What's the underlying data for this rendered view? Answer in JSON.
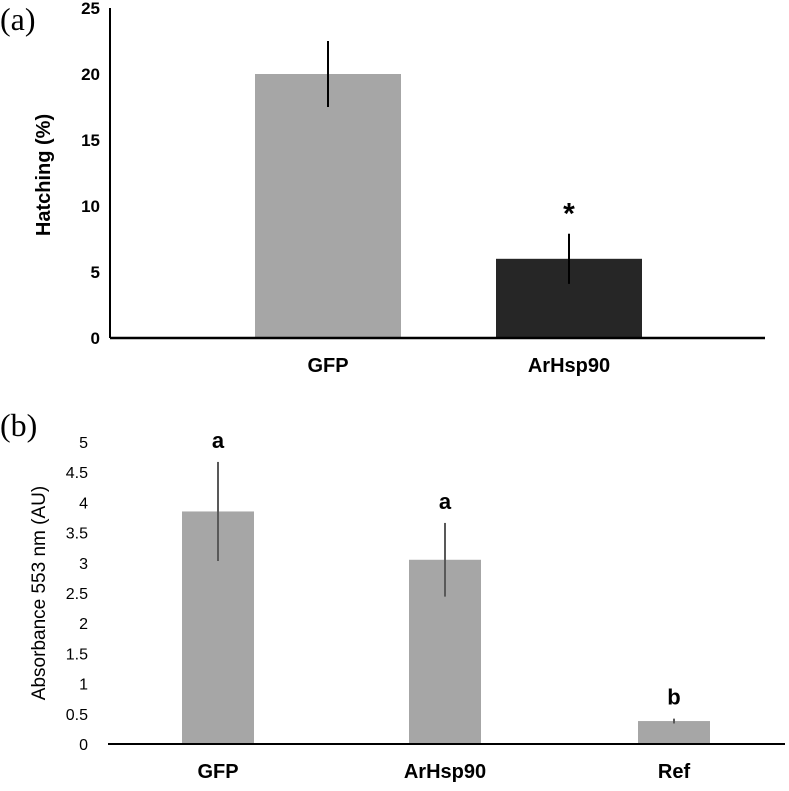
{
  "chart_data": [
    {
      "panel_label": "(a)",
      "type": "bar",
      "title": "",
      "xlabel": "",
      "ylabel": "Hatching (%)",
      "ylim": [
        0,
        25
      ],
      "y_ticks": [
        "0",
        "5",
        "10",
        "15",
        "20",
        "25"
      ],
      "grid": false,
      "categories": [
        "GFP",
        "ArHsp90"
      ],
      "values": [
        20,
        6
      ],
      "errors": [
        2.5,
        1.9
      ],
      "bar_colors": [
        "#a6a6a6",
        "#262626"
      ],
      "annotations": [
        "",
        "*"
      ]
    },
    {
      "panel_label": "(b)",
      "type": "bar",
      "title": "",
      "xlabel": "",
      "ylabel": "Absorbance 553 nm (AU)",
      "ylim": [
        0,
        5
      ],
      "y_ticks": [
        "0",
        "0.5",
        "1",
        "1.5",
        "2",
        "2.5",
        "3",
        "3.5",
        "4",
        "4.5",
        "5"
      ],
      "grid": false,
      "categories": [
        "GFP",
        "ArHsp90",
        "Ref"
      ],
      "values": [
        3.85,
        3.05,
        0.38
      ],
      "errors": [
        0.82,
        0.61,
        0.04
      ],
      "bar_colors": [
        "#a6a6a6",
        "#a6a6a6",
        "#a6a6a6"
      ],
      "annotations": [
        "a",
        "a",
        "b"
      ]
    }
  ],
  "colors": {
    "axis": "#000000",
    "error_bar_a": "#000000",
    "error_bar_b": "#595959"
  }
}
